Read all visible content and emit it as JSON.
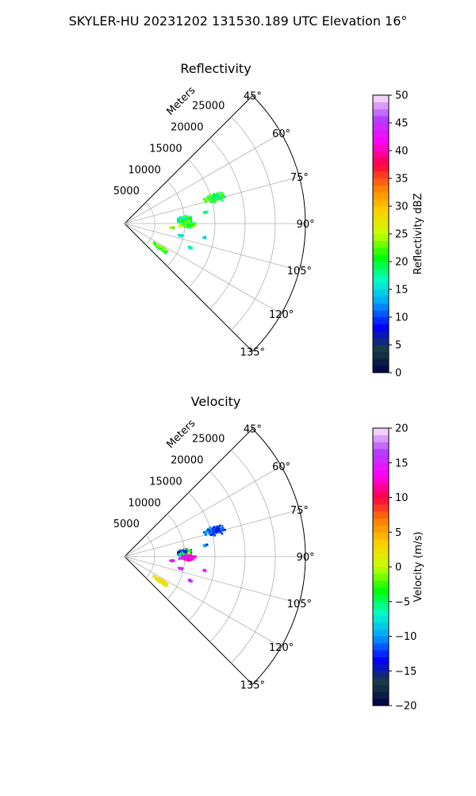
{
  "figure": {
    "title": "SKYLER-HU  20231202  131530.189 UTC Elevation 16°"
  },
  "chart_data": [
    {
      "type": "heatmap",
      "subtype": "polar-sector",
      "title": "Reflectivity",
      "radial_label": "Meters",
      "radial_ticks": [
        "5000",
        "10000",
        "15000",
        "20000",
        "25000"
      ],
      "radial_values": [
        5000,
        10000,
        15000,
        20000,
        25000
      ],
      "r_max": 30000,
      "theta_range_deg": [
        45,
        135
      ],
      "theta_ticks": [
        "45°",
        "60°",
        "75°",
        "90°",
        "105°",
        "120°",
        "135°"
      ],
      "grid": true,
      "colorbar": {
        "label": "Reflectivity dBZ",
        "vmin": 0,
        "vmax": 50,
        "ticks": [
          "0",
          "5",
          "10",
          "15",
          "20",
          "25",
          "30",
          "35",
          "40",
          "45",
          "50"
        ],
        "stops": [
          "#00004a",
          "#1a3d40",
          "#0000ff",
          "#00a0ff",
          "#00ffc8",
          "#00ff00",
          "#c8ff00",
          "#ffd000",
          "#ff8000",
          "#ff0040",
          "#ff00ff",
          "#b040ff",
          "#ffe8ff"
        ]
      },
      "echo_regions": [
        {
          "theta": 74,
          "r": 15500,
          "dtheta": 3.2,
          "dr": 1900,
          "value_mean": 20,
          "value_spread": 5
        },
        {
          "theta": 86,
          "r": 10000,
          "dtheta": 3.8,
          "dr": 1500,
          "value_mean": 19,
          "value_spread": 5
        },
        {
          "theta": 91,
          "r": 10500,
          "dtheta": 3.0,
          "dr": 1600,
          "value_mean": 22,
          "value_spread": 5
        },
        {
          "theta": 124,
          "r": 7300,
          "dtheta": 2.6,
          "dr": 1800,
          "value_mean": 22,
          "value_spread": 5
        },
        {
          "theta": 95,
          "r": 8000,
          "dtheta": 1.0,
          "dr": 500,
          "value_mean": 27,
          "value_spread": 6
        },
        {
          "theta": 102,
          "r": 9500,
          "dtheta": 1.0,
          "dr": 500,
          "value_mean": 16,
          "value_spread": 2
        },
        {
          "theta": 110,
          "r": 11500,
          "dtheta": 1.0,
          "dr": 500,
          "value_mean": 16,
          "value_spread": 2
        },
        {
          "theta": 82,
          "r": 13500,
          "dtheta": 0.8,
          "dr": 500,
          "value_mean": 18,
          "value_spread": 2
        },
        {
          "theta": 100,
          "r": 13500,
          "dtheta": 0.6,
          "dr": 300,
          "value_mean": 15,
          "value_spread": 2
        }
      ]
    },
    {
      "type": "heatmap",
      "subtype": "polar-sector",
      "title": "Velocity",
      "radial_label": "Meters",
      "radial_ticks": [
        "5000",
        "10000",
        "15000",
        "20000",
        "25000"
      ],
      "radial_values": [
        5000,
        10000,
        15000,
        20000,
        25000
      ],
      "r_max": 30000,
      "theta_range_deg": [
        45,
        135
      ],
      "theta_ticks": [
        "45°",
        "60°",
        "75°",
        "90°",
        "105°",
        "120°",
        "135°"
      ],
      "grid": true,
      "colorbar": {
        "label": "Velocity (m/s)",
        "vmin": -20,
        "vmax": 20,
        "ticks": [
          "−20",
          "−15",
          "−10",
          "−5",
          "0",
          "5",
          "10",
          "15",
          "20"
        ],
        "stops": [
          "#00004a",
          "#1a3d40",
          "#0000ff",
          "#00a0ff",
          "#00ffc8",
          "#00ff00",
          "#c8ff00",
          "#ffd000",
          "#ff8000",
          "#ff0040",
          "#ff00ff",
          "#b040ff",
          "#ffe8ff"
        ]
      },
      "echo_regions": [
        {
          "theta": 74,
          "r": 15500,
          "dtheta": 3.2,
          "dr": 1900,
          "value_mean": -12,
          "value_spread": 3
        },
        {
          "theta": 86,
          "r": 10000,
          "dtheta": 3.8,
          "dr": 1500,
          "value_mean": -8,
          "value_spread": 10
        },
        {
          "theta": 91,
          "r": 10500,
          "dtheta": 3.0,
          "dr": 1600,
          "value_mean": 14,
          "value_spread": 4
        },
        {
          "theta": 124,
          "r": 7300,
          "dtheta": 2.6,
          "dr": 1800,
          "value_mean": 2,
          "value_spread": 2
        },
        {
          "theta": 95,
          "r": 8000,
          "dtheta": 1.0,
          "dr": 500,
          "value_mean": 15,
          "value_spread": 2
        },
        {
          "theta": 102,
          "r": 9500,
          "dtheta": 1.0,
          "dr": 500,
          "value_mean": 15,
          "value_spread": 2
        },
        {
          "theta": 110,
          "r": 11500,
          "dtheta": 1.0,
          "dr": 500,
          "value_mean": 15,
          "value_spread": 2
        },
        {
          "theta": 82,
          "r": 13500,
          "dtheta": 0.8,
          "dr": 500,
          "value_mean": -11,
          "value_spread": 3
        },
        {
          "theta": 100,
          "r": 13500,
          "dtheta": 0.6,
          "dr": 300,
          "value_mean": 15,
          "value_spread": 2
        }
      ]
    }
  ]
}
